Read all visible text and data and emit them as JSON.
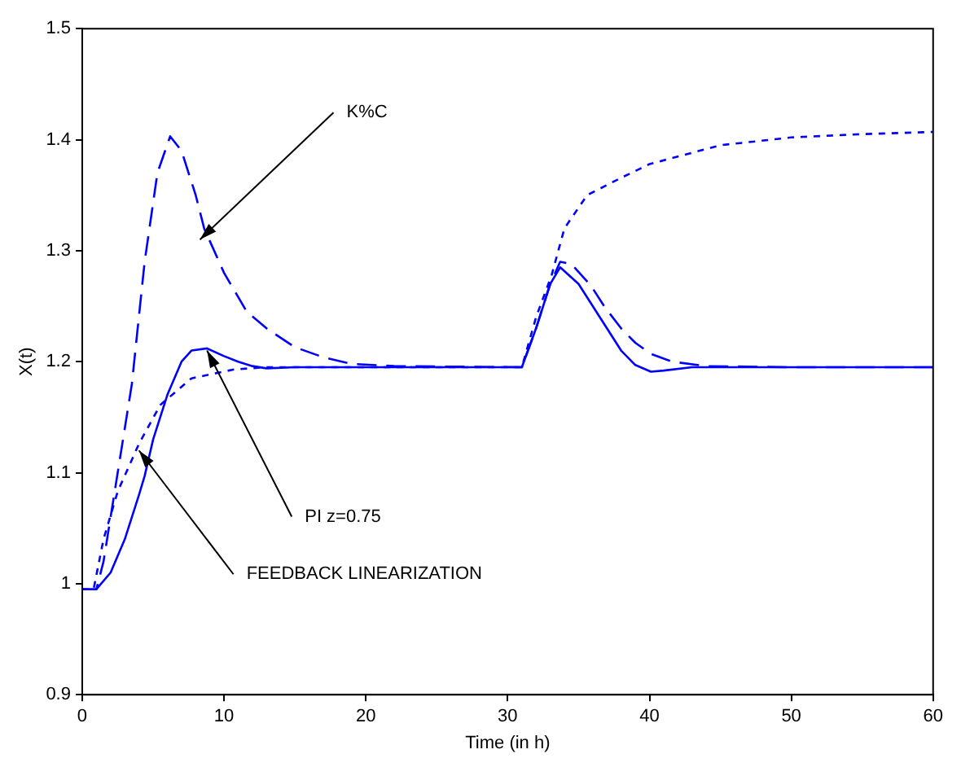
{
  "chart_data": {
    "type": "line",
    "xlabel": "Time (in h)",
    "ylabel": "X(t)",
    "xlim": [
      0,
      60
    ],
    "xticks": [
      0,
      10,
      20,
      30,
      40,
      50,
      60
    ],
    "ylim": [
      0.9,
      1.5
    ],
    "yticks": [
      0.9,
      1,
      1.1,
      1.2,
      1.3,
      1.4,
      1.5
    ],
    "grid": false,
    "legend": false,
    "marker": "none",
    "series": [
      {
        "color": "#0000ff",
        "line_style": "dashed",
        "x": [
          0,
          1,
          1.5,
          2,
          2.5,
          3,
          3.5,
          4.4,
          5.3,
          6.2,
          7,
          8,
          8.6,
          10,
          11.6,
          13,
          15,
          17,
          19,
          22,
          31,
          32,
          33,
          33.7,
          34.5,
          35.9,
          36.8,
          38,
          39,
          40.1,
          41.6,
          44,
          50,
          60
        ],
        "values": [
          0.995,
          0.995,
          1.02,
          1.06,
          1.1,
          1.14,
          1.18,
          1.29,
          1.37,
          1.403,
          1.39,
          1.35,
          1.32,
          1.28,
          1.245,
          1.23,
          1.213,
          1.204,
          1.198,
          1.196,
          1.195,
          1.23,
          1.27,
          1.29,
          1.288,
          1.268,
          1.25,
          1.23,
          1.217,
          1.207,
          1.2,
          1.196,
          1.195,
          1.195
        ]
      },
      {
        "color": "#0000ff",
        "line_style": "solid",
        "x": [
          0,
          1,
          2,
          3,
          4,
          4.4,
          5,
          6,
          7,
          7.7,
          8.8,
          10,
          11,
          12,
          13,
          15,
          20,
          31,
          32,
          33,
          33.7,
          35,
          36,
          37,
          38,
          39,
          40.1,
          41,
          43,
          50,
          60
        ],
        "values": [
          0.995,
          0.995,
          1.01,
          1.04,
          1.08,
          1.097,
          1.13,
          1.17,
          1.2,
          1.21,
          1.212,
          1.205,
          1.2,
          1.196,
          1.194,
          1.195,
          1.195,
          1.195,
          1.23,
          1.27,
          1.285,
          1.27,
          1.25,
          1.23,
          1.21,
          1.197,
          1.191,
          1.192,
          1.195,
          1.195,
          1.195
        ]
      },
      {
        "color": "#0000ff",
        "line_style": "dotted",
        "x": [
          0,
          0.8,
          1.5,
          2.5,
          4,
          5.5,
          7.7,
          10.7,
          13,
          20,
          31,
          32,
          33.1,
          34,
          35.6,
          37.9,
          40,
          45,
          50,
          55,
          60
        ],
        "values": [
          0.995,
          0.995,
          1.04,
          1.083,
          1.126,
          1.161,
          1.185,
          1.193,
          1.195,
          1.195,
          1.195,
          1.24,
          1.278,
          1.32,
          1.35,
          1.365,
          1.378,
          1.395,
          1.402,
          1.405,
          1.407
        ]
      }
    ],
    "annotations": [
      {
        "text": "K%C",
        "x": 8.3,
        "y": 1.31
      },
      {
        "text": "PI z=0.75",
        "x": 8.8,
        "y": 1.21
      },
      {
        "text": "FEEDBACK LINEARIZATION",
        "x": 4,
        "y": 1.12
      }
    ]
  }
}
